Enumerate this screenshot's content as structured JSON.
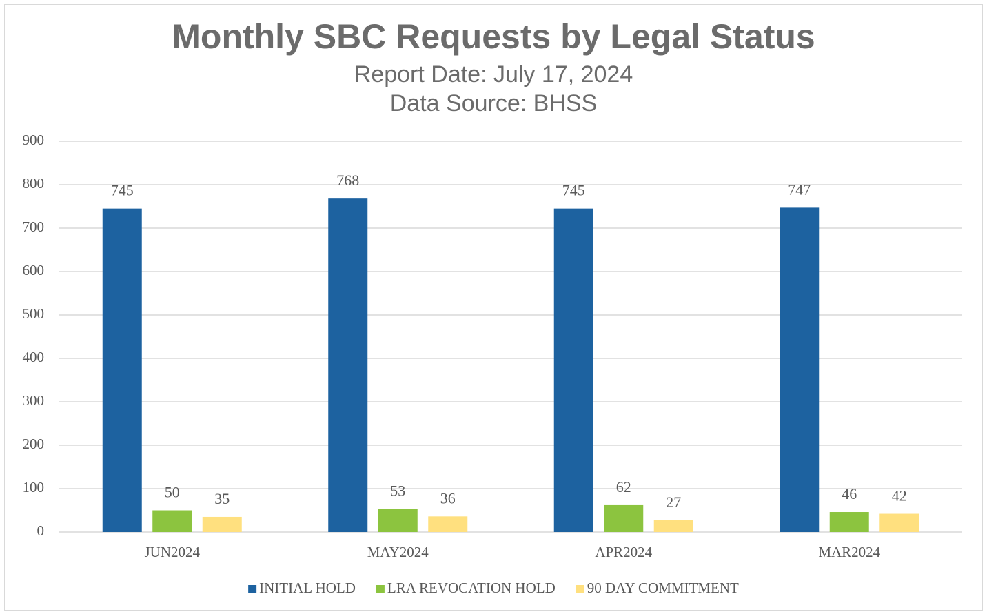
{
  "chart_data": {
    "type": "bar",
    "title": "Monthly SBC Requests by Legal Status",
    "subtitle": [
      "Report Date: July 17, 2024",
      "Data Source: BHSS"
    ],
    "categories": [
      "JUN2024",
      "MAY2024",
      "APR2024",
      "MAR2024"
    ],
    "series": [
      {
        "name": "INITIAL HOLD",
        "color": "#1d62a0",
        "values": [
          745,
          768,
          745,
          747
        ]
      },
      {
        "name": "LRA REVOCATION HOLD",
        "color": "#8cc43f",
        "values": [
          50,
          53,
          62,
          46
        ]
      },
      {
        "name": "90 DAY COMMITMENT",
        "color": "#ffe07f",
        "values": [
          35,
          36,
          27,
          42
        ]
      }
    ],
    "ylim": [
      0,
      900
    ],
    "yticks": [
      0,
      100,
      200,
      300,
      400,
      500,
      600,
      700,
      800,
      900
    ],
    "grid": true,
    "legend": "bottom"
  }
}
